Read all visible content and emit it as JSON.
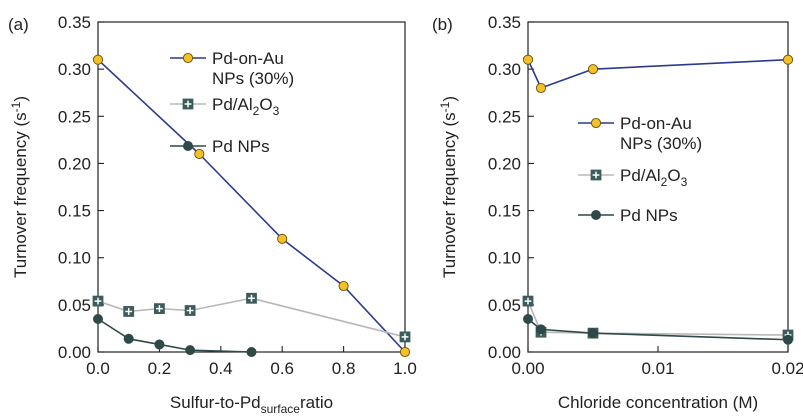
{
  "colors": {
    "pd_on_au_line": "#2b3a8f",
    "pd_on_au_marker": "#f3c02a",
    "pd_al2o3_line": "#b8b8b8",
    "pd_al2o3_marker": "#3d5c5c",
    "pd_nps_line": "#2f4848",
    "pd_nps_marker": "#2f4848",
    "axis": "#222222"
  },
  "chart_data": [
    {
      "type": "line",
      "panel_label": "(a)",
      "ylabel": "Turnover frequency (s",
      "ylabel_sup": "-1",
      "ylabel_end": ")",
      "xlabel": "Sulfur-to-Pd",
      "xlabel_sub": "surface",
      "xlabel_end": "ratio",
      "xlim": [
        0,
        1
      ],
      "ylim": [
        0,
        0.35
      ],
      "xticks": [
        0.0,
        0.2,
        0.4,
        0.6,
        0.8,
        1.0
      ],
      "xtick_labels": [
        "0.0",
        "0.2",
        "0.4",
        "0.6",
        "0.8",
        "1.0"
      ],
      "yticks": [
        0,
        0.05,
        0.1,
        0.15,
        0.2,
        0.25,
        0.3,
        0.35
      ],
      "ytick_labels": [
        "0.00",
        "0.05",
        "0.10",
        "0.15",
        "0.20",
        "0.25",
        "0.30",
        "0.35"
      ],
      "legend_position": "top-right",
      "legend": [
        {
          "series": 0,
          "label_lines": [
            "Pd-on-Au",
            "NPs (30%)"
          ]
        },
        {
          "series": 1,
          "label_lines": [
            "Pd/Al",
            "2",
            "O",
            "3"
          ]
        },
        {
          "series": 2,
          "label_lines": [
            "Pd NPs"
          ]
        }
      ],
      "series": [
        {
          "name": "Pd-on-Au NPs (30%)",
          "marker": "circle-open",
          "x": [
            0.0,
            0.33,
            0.6,
            0.8,
            1.0
          ],
          "y": [
            0.31,
            0.21,
            0.12,
            0.07,
            0.0
          ]
        },
        {
          "name": "Pd/Al2O3",
          "marker": "square-plus",
          "x": [
            0.0,
            0.1,
            0.2,
            0.3,
            0.5,
            1.0
          ],
          "y": [
            0.054,
            0.043,
            0.046,
            0.044,
            0.057,
            0.016
          ]
        },
        {
          "name": "Pd NPs",
          "marker": "circle-filled",
          "x": [
            0.0,
            0.1,
            0.2,
            0.3,
            0.5
          ],
          "y": [
            0.035,
            0.014,
            0.008,
            0.002,
            0.0
          ]
        }
      ]
    },
    {
      "type": "line",
      "panel_label": "(b)",
      "ylabel": "Turnover frequency (s",
      "ylabel_sup": "-1",
      "ylabel_end": ")",
      "xlabel": "Chloride concentration (M)",
      "xlim": [
        0,
        0.02
      ],
      "ylim": [
        0,
        0.35
      ],
      "xticks": [
        0.0,
        0.01,
        0.02
      ],
      "xtick_labels": [
        "0.00",
        "0.01",
        "0.02"
      ],
      "yticks": [
        0,
        0.05,
        0.1,
        0.15,
        0.2,
        0.25,
        0.3,
        0.35
      ],
      "ytick_labels": [
        "0.00",
        "0.05",
        "0.10",
        "0.15",
        "0.20",
        "0.25",
        "0.30",
        "0.35"
      ],
      "legend_position": "center-right",
      "legend": [
        {
          "series": 0,
          "label_lines": [
            "Pd-on-Au",
            "NPs (30%)"
          ]
        },
        {
          "series": 1,
          "label_lines": [
            "Pd/Al",
            "2",
            "O",
            "3"
          ]
        },
        {
          "series": 2,
          "label_lines": [
            "Pd NPs"
          ]
        }
      ],
      "series": [
        {
          "name": "Pd-on-Au NPs (30%)",
          "marker": "circle-open",
          "x": [
            0.0,
            0.001,
            0.005,
            0.02
          ],
          "y": [
            0.31,
            0.28,
            0.3,
            0.31
          ]
        },
        {
          "name": "Pd/Al2O3",
          "marker": "square-plus",
          "x": [
            0.0,
            0.001,
            0.005,
            0.02
          ],
          "y": [
            0.054,
            0.021,
            0.02,
            0.018
          ]
        },
        {
          "name": "Pd NPs",
          "marker": "circle-filled",
          "x": [
            0.0,
            0.001,
            0.005,
            0.02
          ],
          "y": [
            0.035,
            0.024,
            0.02,
            0.013
          ]
        }
      ]
    }
  ]
}
